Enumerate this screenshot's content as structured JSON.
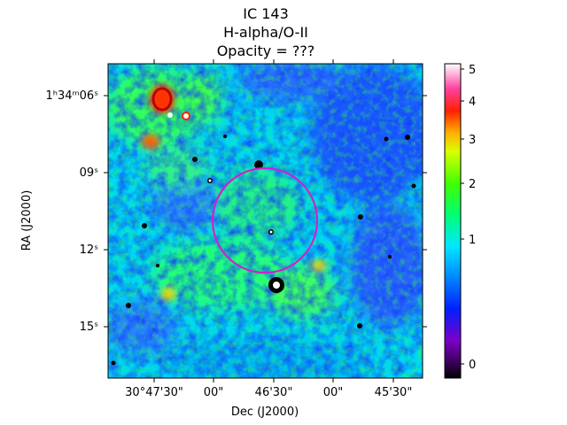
{
  "title": {
    "line1": "IC 143",
    "line2": "H-alpha/O-II",
    "line3": "Opacity = ???"
  },
  "axes": {
    "xlabel": "Dec (J2000)",
    "ylabel": "RA (J2000)",
    "x_ticks": [
      "30°47'30\"",
      "00\"",
      "46'30\"",
      "00\"",
      "45'30\""
    ],
    "y_ticks": [
      {
        "label": "1ʰ34ᵐ06ˢ"
      },
      {
        "label": "09ˢ"
      },
      {
        "label": "12ˢ"
      },
      {
        "label": "15ˢ"
      }
    ]
  },
  "colorbar": {
    "colormap": "gist_ncar-like (black–purple–blue–cyan–green–yellow–red–white)",
    "ticks": [
      "5",
      "4",
      "3",
      "2",
      "1",
      "0"
    ]
  },
  "overlay": {
    "circle_color": "#d020d0"
  }
}
